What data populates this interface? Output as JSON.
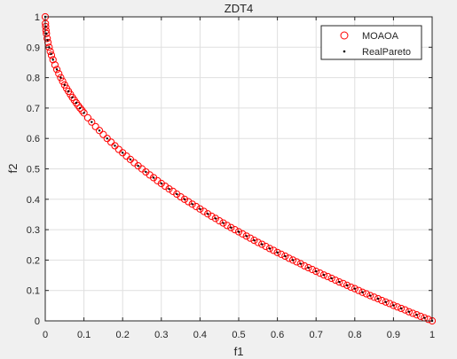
{
  "chart_data": {
    "type": "scatter",
    "title": "ZDT4",
    "xlabel": "f1",
    "ylabel": "f2",
    "xlim": [
      0,
      1
    ],
    "ylim": [
      0,
      1
    ],
    "grid": true,
    "legend_position": "top-right",
    "x_ticks": [
      "0",
      "0.1",
      "0.2",
      "0.3",
      "0.4",
      "0.5",
      "0.6",
      "0.7",
      "0.8",
      "0.9",
      "1"
    ],
    "y_ticks": [
      "0",
      "0.1",
      "0.2",
      "0.3",
      "0.4",
      "0.5",
      "0.6",
      "0.7",
      "0.8",
      "0.9",
      "1"
    ],
    "series": [
      {
        "name": "MOAOA",
        "marker": "circle-open",
        "color": "#ff0000",
        "x": [
          0,
          0.0005,
          0.001,
          0.002,
          0.003,
          0.005,
          0.007,
          0.01,
          0.013,
          0.016,
          0.02,
          0.025,
          0.03,
          0.035,
          0.04,
          0.045,
          0.05,
          0.055,
          0.06,
          0.065,
          0.07,
          0.075,
          0.08,
          0.085,
          0.09,
          0.095,
          0.1,
          0.11,
          0.12,
          0.13,
          0.14,
          0.15,
          0.16,
          0.17,
          0.18,
          0.19,
          0.2,
          0.21,
          0.22,
          0.23,
          0.24,
          0.25,
          0.26,
          0.27,
          0.28,
          0.29,
          0.3,
          0.31,
          0.32,
          0.33,
          0.34,
          0.35,
          0.36,
          0.37,
          0.38,
          0.39,
          0.4,
          0.41,
          0.42,
          0.43,
          0.44,
          0.45,
          0.46,
          0.47,
          0.48,
          0.49,
          0.5,
          0.51,
          0.52,
          0.53,
          0.54,
          0.55,
          0.56,
          0.57,
          0.58,
          0.59,
          0.6,
          0.61,
          0.62,
          0.63,
          0.64,
          0.65,
          0.66,
          0.67,
          0.68,
          0.69,
          0.7,
          0.71,
          0.72,
          0.73,
          0.74,
          0.75,
          0.76,
          0.77,
          0.78,
          0.79,
          0.8,
          0.81,
          0.82,
          0.83,
          0.84,
          0.85,
          0.86,
          0.87,
          0.88,
          0.89,
          0.9,
          0.91,
          0.92,
          0.93,
          0.94,
          0.95,
          0.96,
          0.97,
          0.98,
          0.99,
          1
        ],
        "y": [
          1,
          0.978,
          0.968,
          0.955,
          0.945,
          0.929,
          0.916,
          0.9,
          0.886,
          0.874,
          0.859,
          0.842,
          0.827,
          0.813,
          0.8,
          0.788,
          0.776,
          0.765,
          0.755,
          0.745,
          0.735,
          0.726,
          0.717,
          0.708,
          0.7,
          0.692,
          0.684,
          0.668,
          0.654,
          0.639,
          0.626,
          0.613,
          0.6,
          0.588,
          0.576,
          0.564,
          0.553,
          0.542,
          0.531,
          0.52,
          0.51,
          0.5,
          0.49,
          0.48,
          0.471,
          0.461,
          0.452,
          0.443,
          0.434,
          0.426,
          0.417,
          0.408,
          0.4,
          0.392,
          0.384,
          0.376,
          0.368,
          0.36,
          0.352,
          0.344,
          0.337,
          0.329,
          0.322,
          0.314,
          0.307,
          0.3,
          0.293,
          0.286,
          0.279,
          0.272,
          0.265,
          0.258,
          0.252,
          0.245,
          0.238,
          0.232,
          0.225,
          0.219,
          0.213,
          0.206,
          0.2,
          0.194,
          0.188,
          0.181,
          0.175,
          0.169,
          0.163,
          0.157,
          0.151,
          0.146,
          0.14,
          0.134,
          0.128,
          0.123,
          0.117,
          0.111,
          0.106,
          0.1,
          0.094,
          0.089,
          0.083,
          0.078,
          0.073,
          0.067,
          0.062,
          0.057,
          0.051,
          0.046,
          0.041,
          0.036,
          0.03,
          0.025,
          0.02,
          0.015,
          0.01,
          0.005,
          0
        ]
      },
      {
        "name": "RealPareto",
        "marker": "point",
        "color": "#000000",
        "x": [
          0,
          0.001,
          0.003,
          0.006,
          0.01,
          0.015,
          0.02,
          0.03,
          0.04,
          0.05,
          0.06,
          0.07,
          0.08,
          0.09,
          0.1,
          0.12,
          0.14,
          0.16,
          0.18,
          0.2,
          0.22,
          0.24,
          0.26,
          0.28,
          0.3,
          0.32,
          0.34,
          0.36,
          0.38,
          0.4,
          0.42,
          0.44,
          0.46,
          0.48,
          0.5,
          0.52,
          0.54,
          0.56,
          0.58,
          0.6,
          0.62,
          0.64,
          0.66,
          0.68,
          0.7,
          0.72,
          0.74,
          0.76,
          0.78,
          0.8,
          0.82,
          0.84,
          0.86,
          0.88,
          0.9,
          0.92,
          0.94,
          0.96,
          0.98,
          1
        ],
        "y": [
          1,
          0.968,
          0.945,
          0.923,
          0.9,
          0.878,
          0.859,
          0.827,
          0.8,
          0.776,
          0.755,
          0.735,
          0.717,
          0.7,
          0.684,
          0.654,
          0.626,
          0.6,
          0.576,
          0.553,
          0.531,
          0.51,
          0.49,
          0.471,
          0.452,
          0.434,
          0.417,
          0.4,
          0.384,
          0.368,
          0.352,
          0.337,
          0.322,
          0.307,
          0.293,
          0.279,
          0.265,
          0.252,
          0.238,
          0.225,
          0.213,
          0.2,
          0.188,
          0.175,
          0.163,
          0.151,
          0.14,
          0.128,
          0.117,
          0.106,
          0.094,
          0.083,
          0.073,
          0.062,
          0.051,
          0.041,
          0.03,
          0.02,
          0.01,
          0
        ]
      }
    ]
  }
}
